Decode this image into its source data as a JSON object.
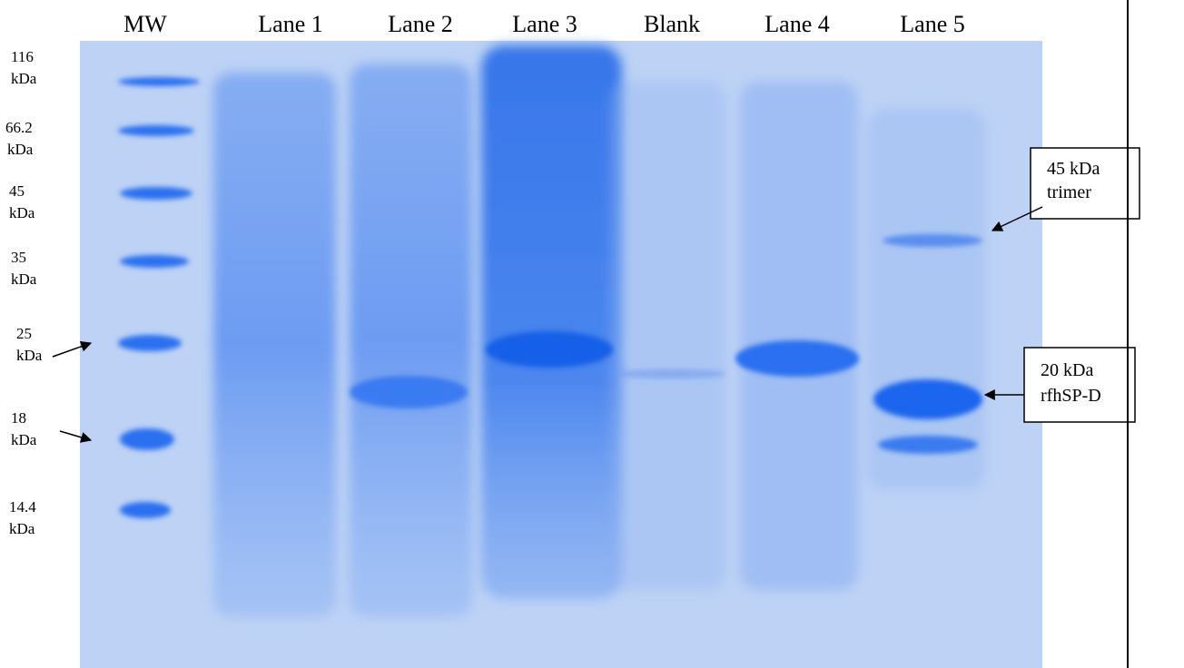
{
  "lanes": [
    "MW",
    "Lane 1",
    "Lane 2",
    "Lane 3",
    "Blank",
    "Lane 4",
    "Lane 5"
  ],
  "markers": [
    [
      "116",
      "kDa"
    ],
    [
      "66.2",
      "kDa"
    ],
    [
      "45",
      "kDa"
    ],
    [
      "35",
      "kDa"
    ],
    [
      "25",
      "kDa"
    ],
    [
      "18",
      "kDa"
    ],
    [
      "14.4",
      "kDa"
    ]
  ],
  "annotations": [
    [
      "45 kDa",
      "trimer"
    ],
    [
      "20 kDa",
      "rfhSP-D"
    ]
  ]
}
